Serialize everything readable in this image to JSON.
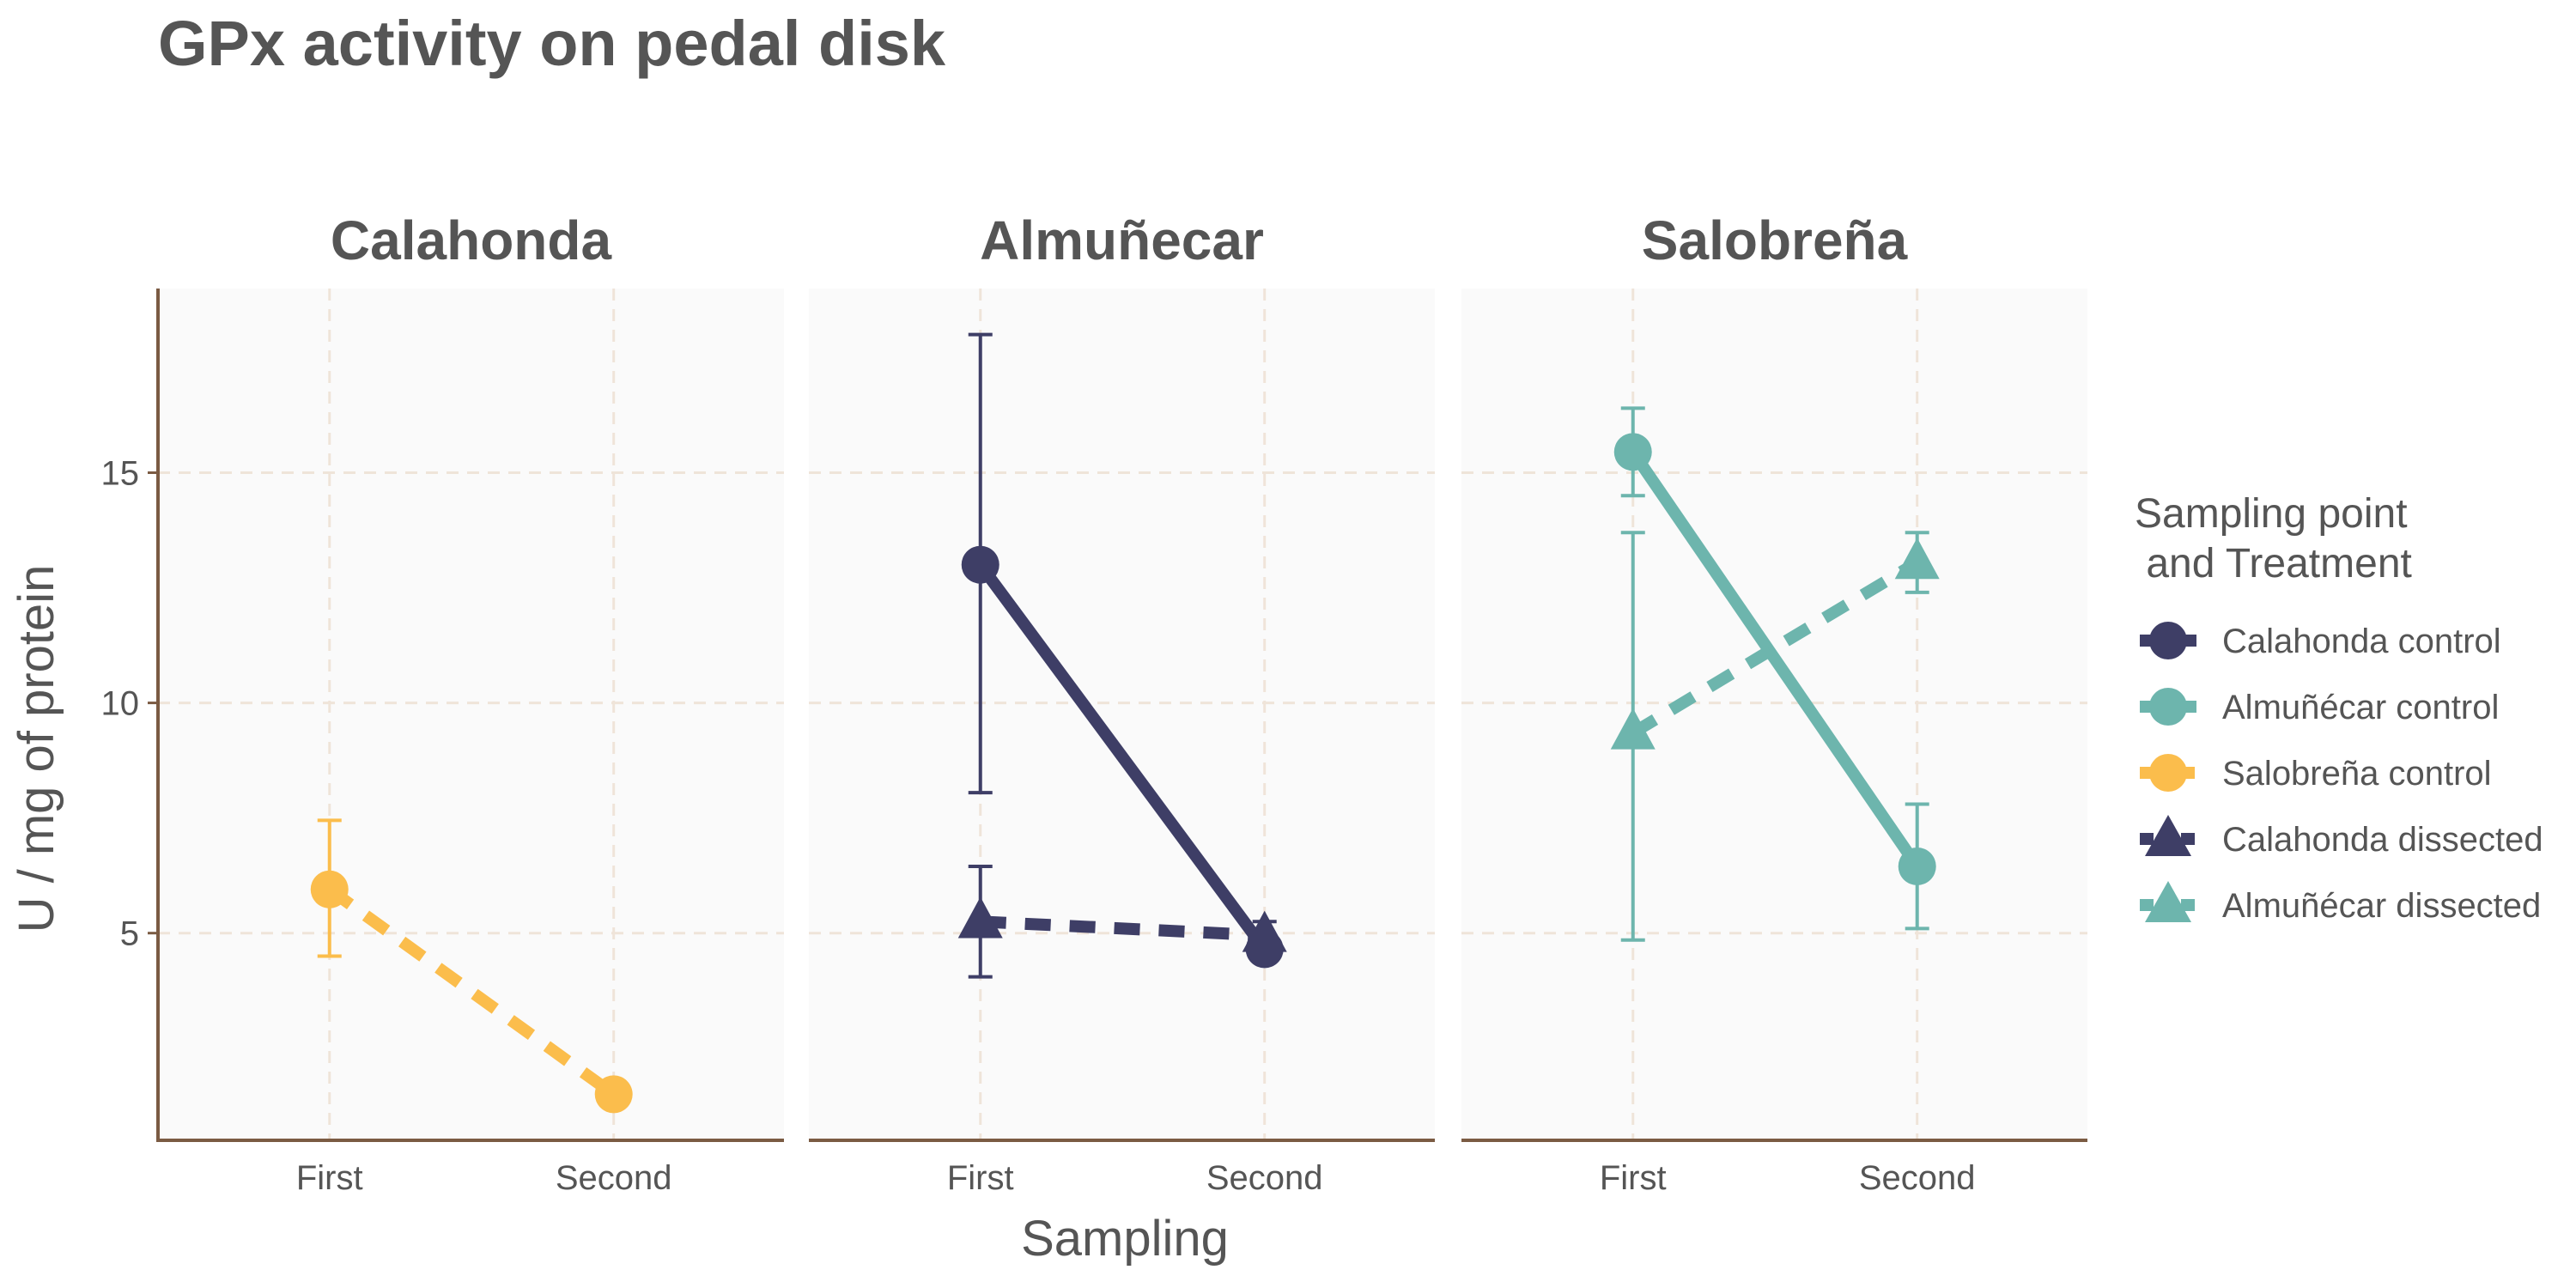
{
  "chart_data": {
    "type": "line",
    "title": "GPx activity on pedal disk",
    "xlabel": "Sampling",
    "ylabel": "U / mg  of protein",
    "categories": [
      "First",
      "Second"
    ],
    "y_ticks": [
      "5",
      "10",
      "15"
    ],
    "ylim": [
      0.5,
      19
    ],
    "grid": true,
    "legend": {
      "title_line1": "Sampling point",
      "title_line2": " and Treatment",
      "placement": "right",
      "entries": [
        {
          "label": "Calahonda control",
          "color": "#3e3e66",
          "shape": "circle",
          "dash": "solid"
        },
        {
          "label": "Almuñécar control",
          "color": "#6db5ad",
          "shape": "circle",
          "dash": "solid"
        },
        {
          "label": "Salobreña control",
          "color": "#fbbd4c",
          "shape": "circle",
          "dash": "dashed"
        },
        {
          "label": "Calahonda dissected",
          "color": "#3e3e66",
          "shape": "triangle",
          "dash": "dashed"
        },
        {
          "label": "Almuñécar dissected",
          "color": "#6db5ad",
          "shape": "triangle",
          "dash": "dashed"
        }
      ]
    },
    "panels": [
      {
        "title": "Calahonda",
        "series": [
          {
            "name": "Salobreña control",
            "color": "#fbbd4c",
            "shape": "circle",
            "dash": "dashed",
            "values": [
              5.95,
              1.5
            ],
            "err_low": [
              4.5,
              null
            ],
            "err_high": [
              7.45,
              null
            ]
          }
        ]
      },
      {
        "title": "Almuñecar",
        "series": [
          {
            "name": "Calahonda control",
            "color": "#3e3e66",
            "shape": "circle",
            "dash": "solid",
            "values": [
              13.0,
              4.65
            ],
            "err_low": [
              8.05,
              null
            ],
            "err_high": [
              18.0,
              null
            ]
          },
          {
            "name": "Calahonda dissected",
            "color": "#3e3e66",
            "shape": "triangle",
            "dash": "dashed",
            "values": [
              5.25,
              4.95
            ],
            "err_low": [
              4.05,
              4.85
            ],
            "err_high": [
              6.45,
              5.25
            ]
          }
        ]
      },
      {
        "title": "Salobreña",
        "series": [
          {
            "name": "Almuñécar control",
            "color": "#6db5ad",
            "shape": "circle",
            "dash": "solid",
            "values": [
              15.45,
              6.45
            ],
            "err_low": [
              14.5,
              5.1
            ],
            "err_high": [
              16.4,
              7.8
            ]
          },
          {
            "name": "Almuñécar dissected",
            "color": "#6db5ad",
            "shape": "triangle",
            "dash": "dashed",
            "values": [
              9.35,
              13.05
            ],
            "err_low": [
              4.85,
              12.4
            ],
            "err_high": [
              13.7,
              13.7
            ]
          }
        ]
      }
    ],
    "colors": {
      "panel_bg": "#fafafa",
      "grid": "#efe4d9",
      "axis": "#7b5b43",
      "text": "#555555"
    }
  }
}
